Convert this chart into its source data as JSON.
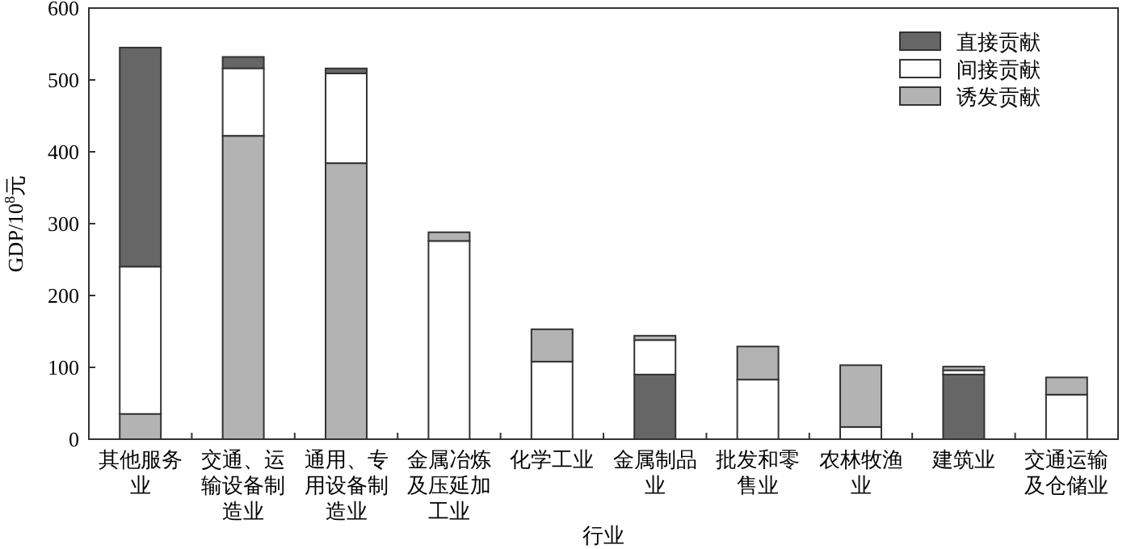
{
  "chart_data": {
    "type": "bar",
    "xlabel": "行业",
    "ylabel": "GDP/10$^{8}$元",
    "categories": [
      "其他服务业",
      "交通、运输设备制造业",
      "通用、专用设备制造业",
      "金属冶炼及压延加工业",
      "化学工业",
      "金属制品业",
      "批发和零售业",
      "农林牧渔业",
      "建筑业",
      "交通运输及仓储业"
    ],
    "series": [
      {
        "name": "直接贡献",
        "color": "#666666",
        "values": [
          305,
          16,
          7,
          null,
          null,
          90,
          null,
          null,
          90,
          null
        ],
        "base": [
          240,
          516,
          509,
          null,
          null,
          0,
          null,
          null,
          0,
          null
        ]
      },
      {
        "name": "间接贡献",
        "color": "#ffffff",
        "values": [
          205,
          94,
          125,
          276,
          108,
          48,
          83,
          17,
          6,
          62
        ],
        "base": [
          35,
          422,
          384,
          0,
          0,
          90,
          0,
          0,
          90,
          0
        ]
      },
      {
        "name": "诱发贡献",
        "color": "#b3b3b3",
        "values": [
          35,
          422,
          384,
          12,
          45,
          6,
          46,
          86,
          5,
          24
        ],
        "base": [
          0,
          0,
          0,
          276,
          108,
          138,
          83,
          17,
          96,
          62
        ]
      }
    ],
    "ylim": [
      0,
      600
    ],
    "yticks": [
      0,
      100,
      200,
      300,
      400,
      500,
      600
    ],
    "grid": false,
    "legend": "top right"
  }
}
